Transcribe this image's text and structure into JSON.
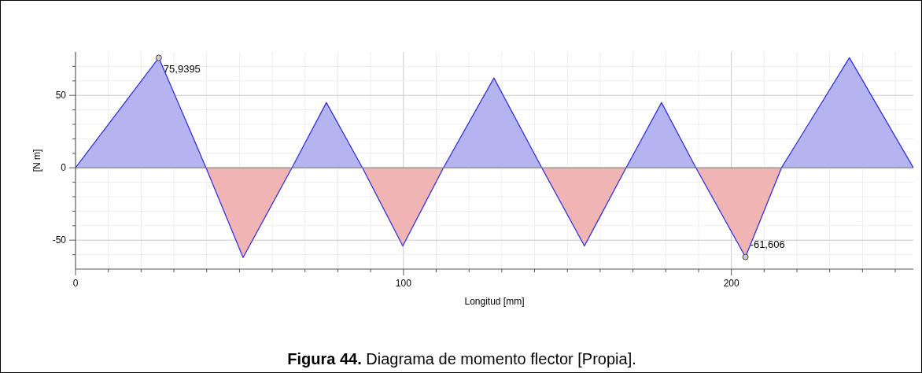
{
  "chart_data": {
    "type": "area",
    "xlabel": "Longitud [mm]",
    "ylabel": "[N m]",
    "x": [
      0,
      25.4,
      39.8,
      51.1,
      66,
      76.5,
      87.5,
      99.8,
      112.2,
      127.6,
      142.2,
      155.2,
      167.9,
      178.7,
      189.2,
      204.3,
      215.3,
      236,
      255.5
    ],
    "series": [
      {
        "color": "#3333dd",
        "values": [
          0,
          75.9395,
          0,
          -62,
          0,
          45,
          0,
          -54,
          0,
          62,
          0,
          -54,
          0,
          45,
          0,
          -61.606,
          0,
          76,
          0
        ]
      }
    ],
    "colors": [
      "#b4b4f0",
      "#f0b4b4"
    ],
    "xlim": [
      0,
      255.5
    ],
    "ylim": [
      -70,
      80
    ],
    "xticks": [
      0,
      {
        "value": 10,
        "label": null
      },
      {
        "value": 20,
        "label": null
      },
      {
        "value": 30,
        "label": null
      },
      {
        "value": 40,
        "label": null
      },
      {
        "value": 50,
        "label": null
      },
      {
        "value": 60,
        "label": null
      },
      {
        "value": 70,
        "label": null
      },
      {
        "value": 80,
        "label": null
      },
      {
        "value": 90,
        "label": null
      },
      100,
      {
        "value": 110,
        "label": null
      },
      {
        "value": 120,
        "label": null
      },
      {
        "value": 130,
        "label": null
      },
      {
        "value": 140,
        "label": null
      },
      {
        "value": 150,
        "label": null
      },
      {
        "value": 160,
        "label": null
      },
      {
        "value": 170,
        "label": null
      },
      {
        "value": 180,
        "label": null
      },
      {
        "value": 190,
        "label": null
      },
      200,
      {
        "value": 210,
        "label": null
      },
      {
        "value": 220,
        "label": null
      },
      {
        "value": 230,
        "label": null
      },
      {
        "value": 240,
        "label": null
      },
      {
        "value": 250,
        "label": null
      }
    ],
    "yticks": [
      {
        "value": -60,
        "label": null
      },
      -50,
      {
        "value": -40,
        "label": null
      },
      {
        "value": -30,
        "label": null
      },
      {
        "value": -20,
        "label": null
      },
      {
        "value": -10,
        "label": null
      },
      0,
      {
        "value": 10,
        "label": null
      },
      {
        "value": 20,
        "label": null
      },
      {
        "value": 30,
        "label": null
      },
      {
        "value": 40,
        "label": null
      },
      50,
      {
        "value": 60,
        "label": null
      },
      {
        "value": 70,
        "label": null
      }
    ],
    "grid": true,
    "annotations": [
      {
        "text": "75,9395",
        "x": 25.4,
        "y": 75.9395
      },
      {
        "text": "-61,606",
        "x": 204.3,
        "y": -61.606
      },
      "Figura 44. Diagrama de momento flector [Propia]."
    ]
  }
}
